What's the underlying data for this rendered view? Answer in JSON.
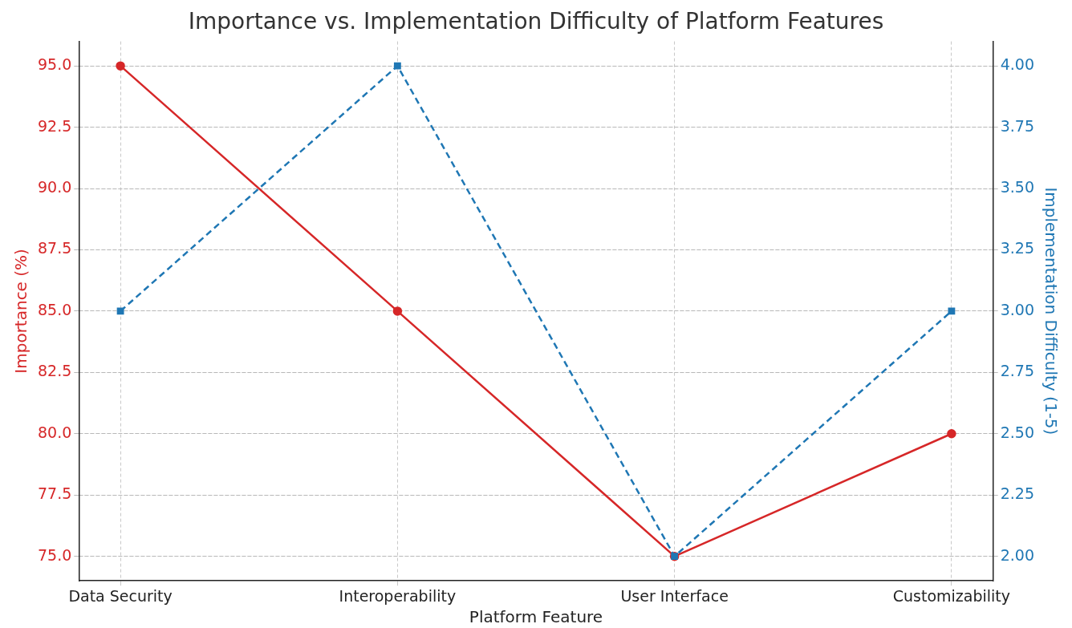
{
  "chart_data": {
    "type": "line",
    "title": "Importance vs. Implementation Difficulty of Platform Features",
    "xlabel": "Platform Feature",
    "ylabel": "Importance (%)",
    "y2label": "Implementation Difficulty (1-5)",
    "categories": [
      "Data Security",
      "Interoperability",
      "User Interface",
      "Customizability"
    ],
    "series": [
      {
        "color": "#d62728",
        "values": [
          95,
          85,
          75,
          80
        ],
        "marker": "circle",
        "line_style": "solid"
      },
      {
        "color": "#1f77b4",
        "values": [
          3,
          4,
          2,
          3
        ],
        "axis": "y2",
        "marker": "square",
        "line_style": "dashed"
      }
    ],
    "ylim": [
      74,
      96
    ],
    "yticks": [
      {
        "value": 75,
        "label": "75.0"
      },
      {
        "value": 77.5,
        "label": "77.5"
      },
      {
        "value": 80,
        "label": "80.0"
      },
      {
        "value": 82.5,
        "label": "82.5"
      },
      {
        "value": 85,
        "label": "85.0"
      },
      {
        "value": 87.5,
        "label": "87.5"
      },
      {
        "value": 90,
        "label": "90.0"
      },
      {
        "value": 92.5,
        "label": "92.5"
      },
      {
        "value": 95,
        "label": "95.0"
      }
    ],
    "y2lim": [
      1.9,
      4.1
    ],
    "y2ticks": [
      {
        "value": 2,
        "label": "2.00"
      },
      {
        "value": 2.25,
        "label": "2.25"
      },
      {
        "value": 2.5,
        "label": "2.50"
      },
      {
        "value": 2.75,
        "label": "2.75"
      },
      {
        "value": 3,
        "label": "3.00"
      },
      {
        "value": 3.25,
        "label": "3.25"
      },
      {
        "value": 3.5,
        "label": "3.50"
      },
      {
        "value": 3.75,
        "label": "3.75"
      },
      {
        "value": 4,
        "label": "4.00"
      }
    ],
    "grid": true,
    "legend": false
  }
}
